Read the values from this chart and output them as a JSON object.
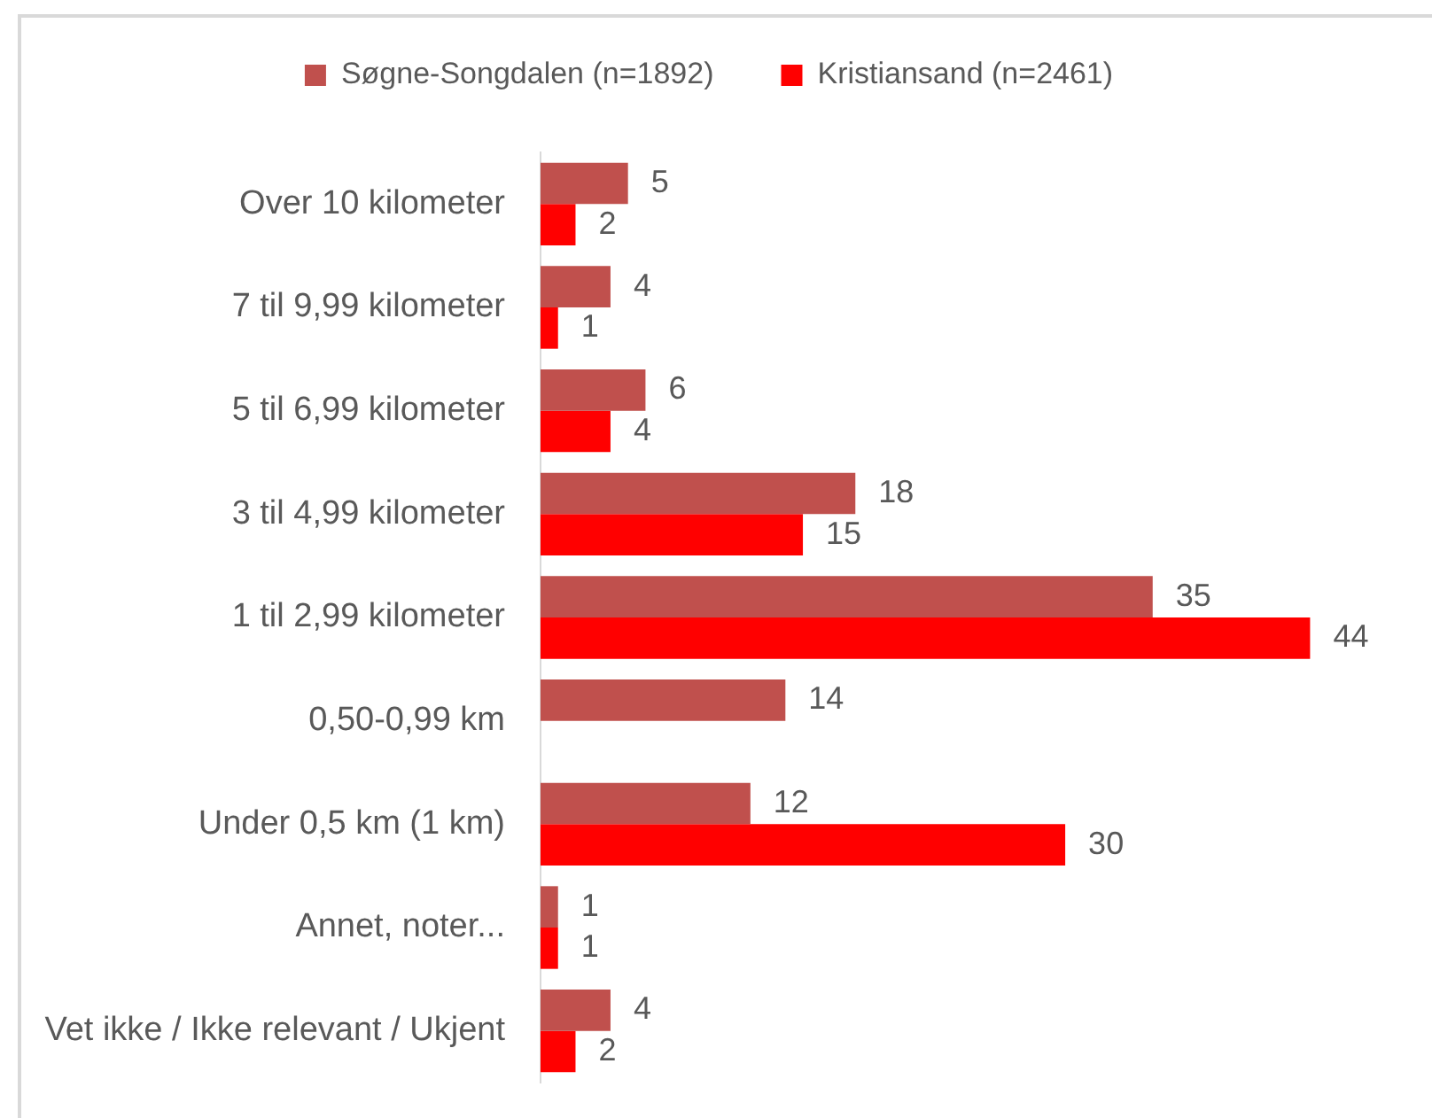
{
  "chart_data": {
    "type": "bar",
    "orientation": "horizontal",
    "categories": [
      "Over 10 kilometer",
      "7 til 9,99 kilometer",
      "5 til 6,99 kilometer",
      "3 til 4,99 kilometer",
      "1 til 2,99 kilometer",
      "0,50-0,99 km",
      "Under 0,5 km (1 km)",
      "Annet, noter...",
      "Vet ikke / Ikke relevant / Ukjent"
    ],
    "series": [
      {
        "name": "Søgne-Songdalen (n=1892)",
        "color": "#c0504d",
        "values": [
          5,
          4,
          6,
          18,
          35,
          14,
          12,
          1,
          4
        ]
      },
      {
        "name": "Kristiansand (n=2461)",
        "color": "#ff0000",
        "values": [
          2,
          1,
          4,
          15,
          44,
          null,
          30,
          1,
          2
        ]
      }
    ],
    "data_labels": true,
    "legend": "top",
    "tick_labels": "y"
  }
}
